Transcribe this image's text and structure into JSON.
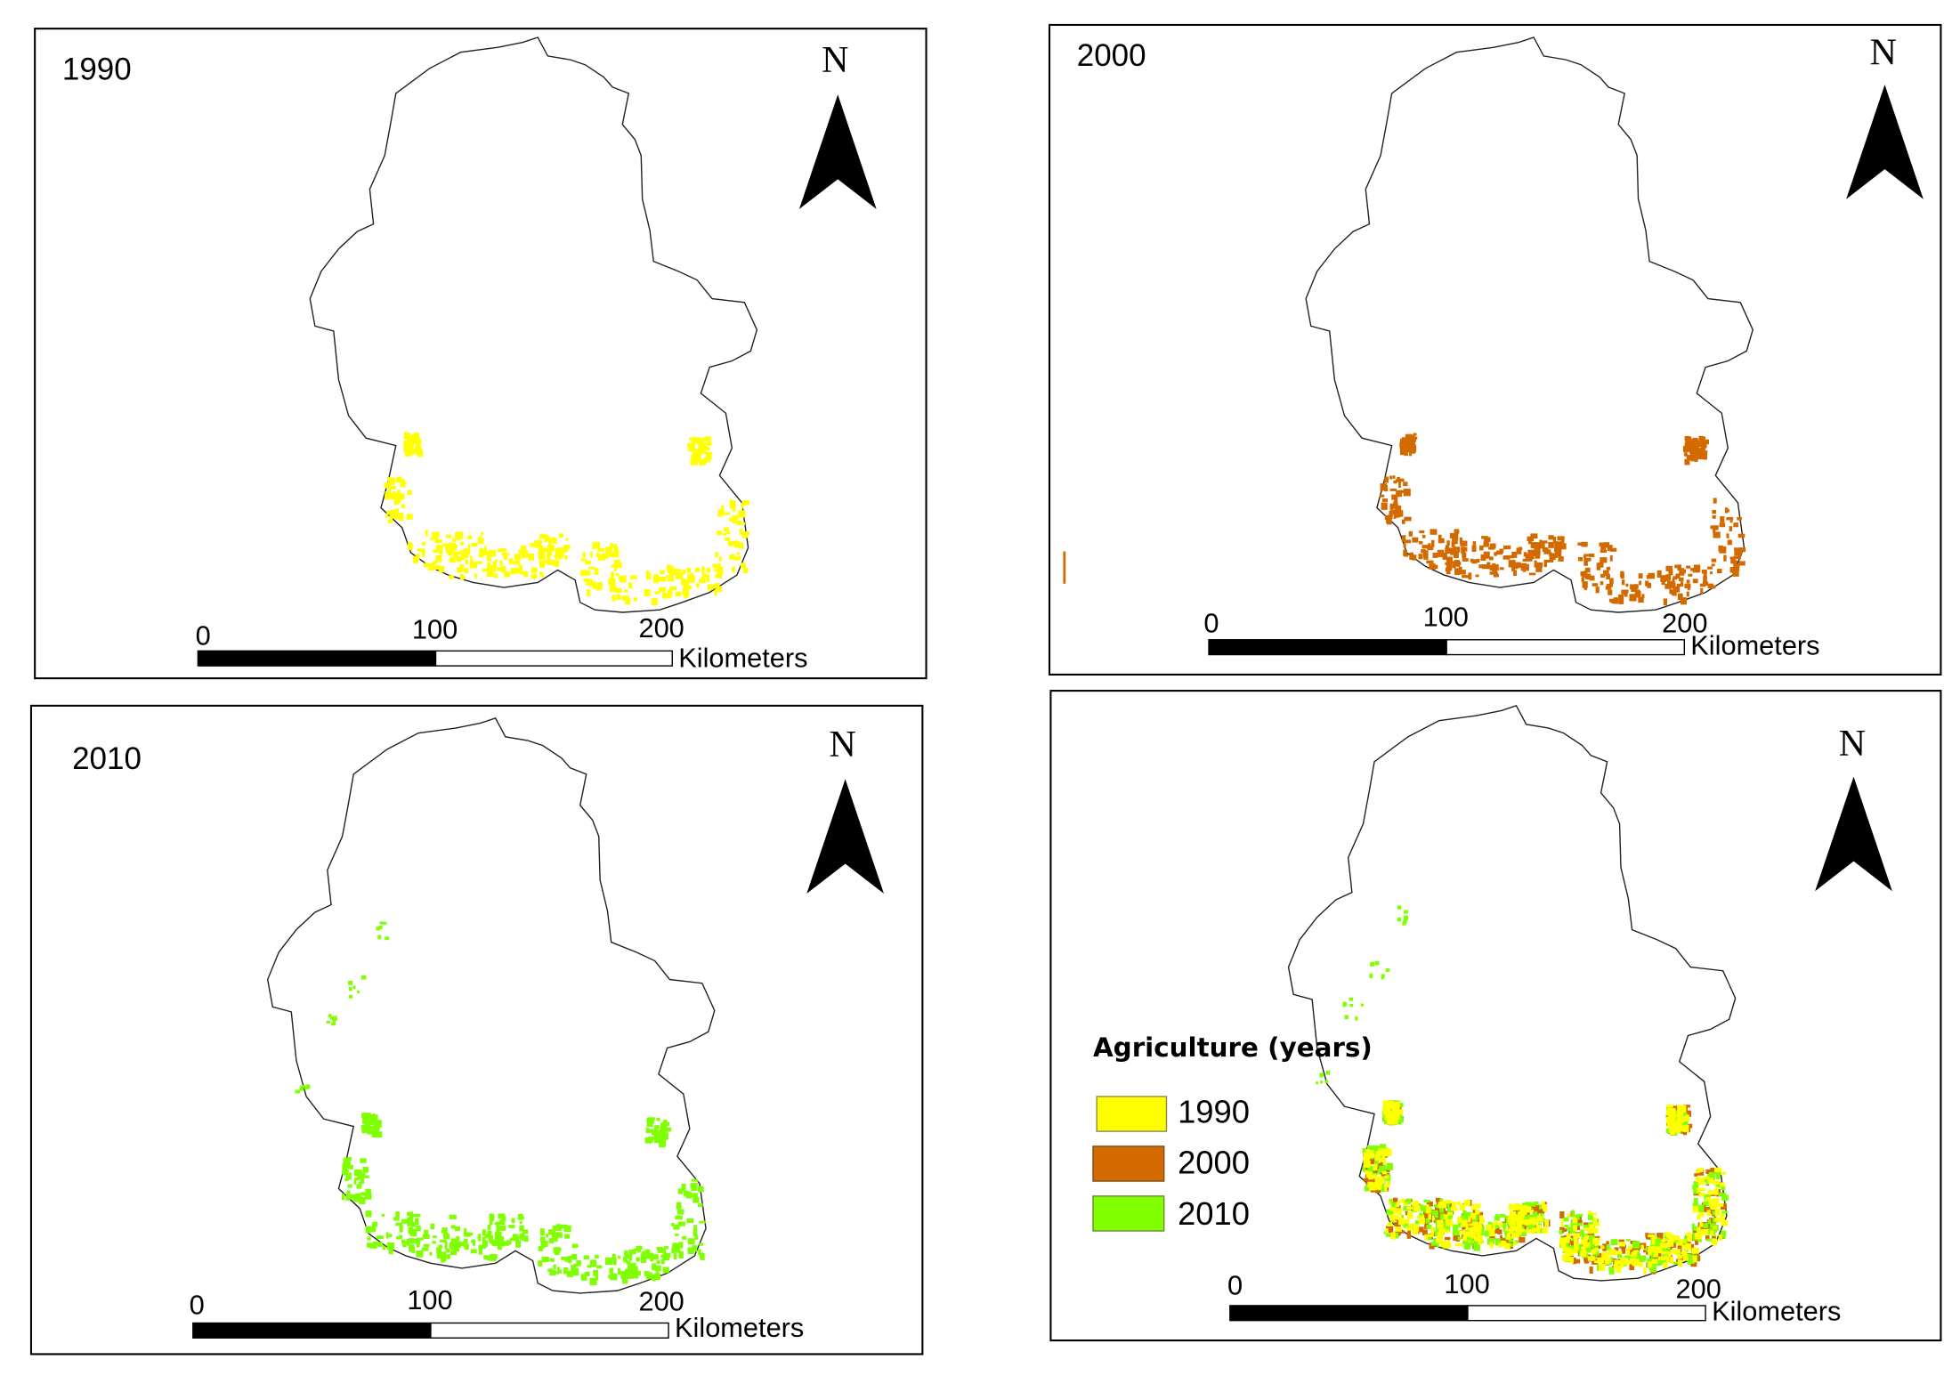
{
  "colors": {
    "y1990": "#ffff00",
    "y2000": "#d26a00",
    "y2010": "#80ff00"
  },
  "panels": [
    {
      "title": "1990",
      "north": "N",
      "scale": [
        "0",
        "100",
        "200"
      ],
      "unit": "Kilometers",
      "layers": [
        "y1990"
      ]
    },
    {
      "title": "2000",
      "north": "N",
      "scale": [
        "0",
        "100",
        "200"
      ],
      "unit": "Kilometers",
      "layers": [
        "y2000"
      ]
    },
    {
      "title": "2010",
      "north": "N",
      "scale": [
        "0",
        "100",
        "200"
      ],
      "unit": "Kilometers",
      "layers": [
        "y2010"
      ]
    },
    {
      "title": "",
      "north": "N",
      "scale": [
        "0",
        "100",
        "200"
      ],
      "unit": "Kilometers",
      "layers": [
        "y2000",
        "y2010",
        "y1990"
      ]
    }
  ],
  "legend": {
    "title": "Agriculture  (years)",
    "items": [
      {
        "label": "1990",
        "color": "#ffff00"
      },
      {
        "label": "2000",
        "color": "#d26a00"
      },
      {
        "label": "2010",
        "color": "#80ff00"
      }
    ]
  }
}
